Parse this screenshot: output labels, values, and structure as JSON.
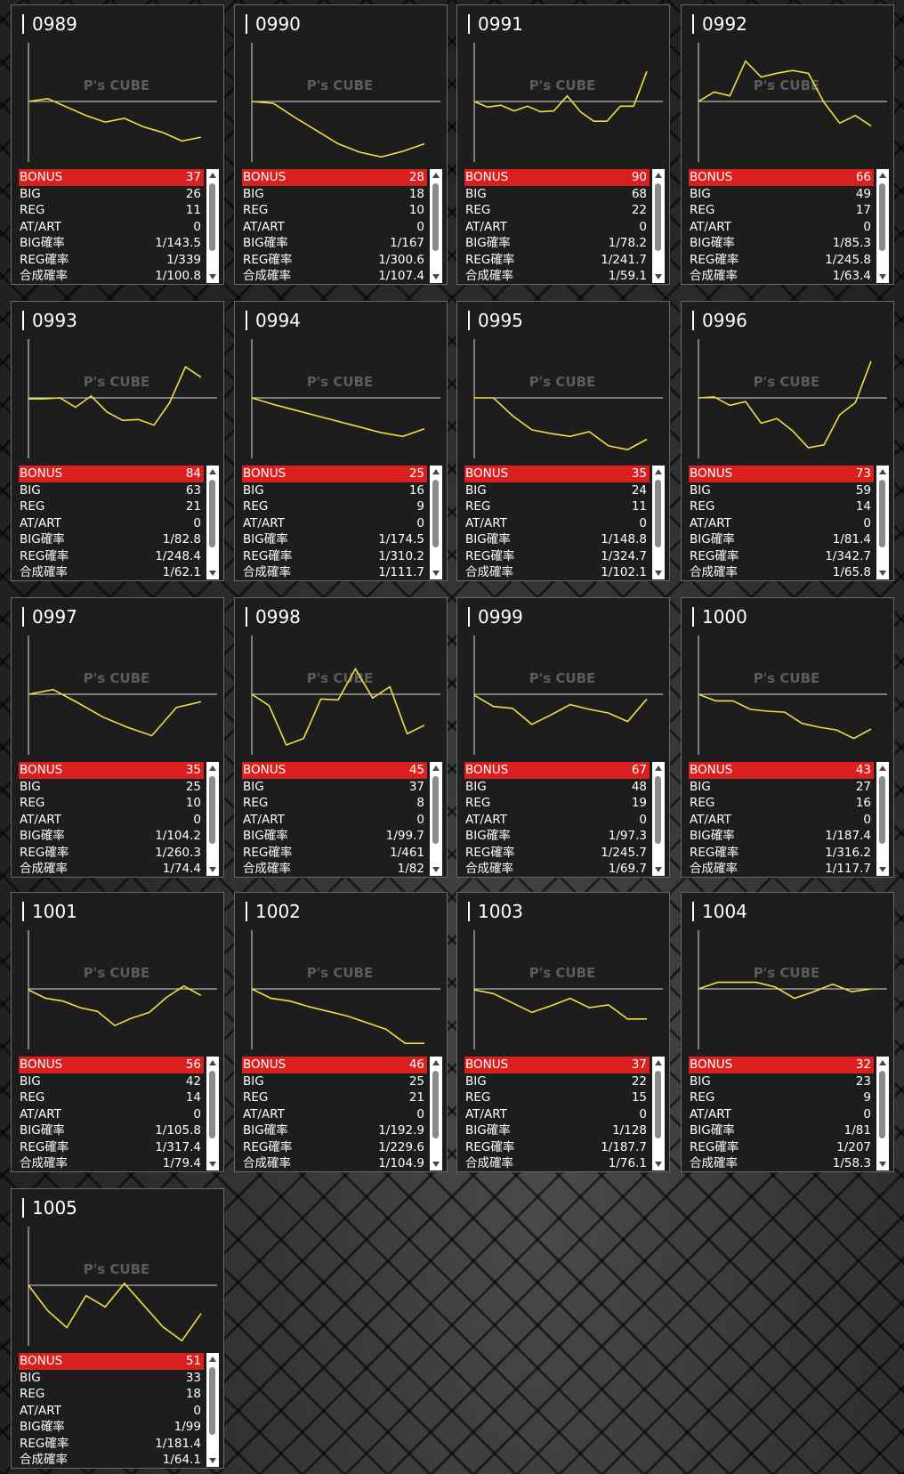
{
  "watermark": "P's CUBE",
  "stat_labels": [
    "BONUS",
    "BIG",
    "REG",
    "AT/ART",
    "BIG確率",
    "REG確率",
    "合成確率"
  ],
  "cards": [
    {
      "number": "0989",
      "line": [
        0,
        3,
        -6,
        -15,
        -22,
        -18,
        -27,
        -33,
        -42,
        -38
      ],
      "stats": [
        37,
        26,
        11,
        0,
        "1/143.5",
        "1/339",
        "1/100.8"
      ]
    },
    {
      "number": "0990",
      "line": [
        0,
        -2,
        -17,
        -31,
        -45,
        -54,
        -59,
        -53,
        -45
      ],
      "stats": [
        28,
        18,
        10,
        0,
        "1/167",
        "1/300.6",
        "1/107.4"
      ]
    },
    {
      "number": "0991",
      "line": [
        0,
        -6,
        -4,
        -10,
        -5,
        -11,
        -10,
        6,
        -11,
        -21,
        -21,
        -5,
        -5,
        32
      ],
      "stats": [
        90,
        68,
        22,
        0,
        "1/78.2",
        "1/241.7",
        "1/59.1"
      ]
    },
    {
      "number": "0992",
      "line": [
        0,
        10,
        6,
        43,
        26,
        30,
        33,
        30,
        -1,
        -23,
        -15,
        -26
      ],
      "stats": [
        66,
        49,
        17,
        0,
        "1/85.3",
        "1/245.8",
        "1/63.4"
      ]
    },
    {
      "number": "0993",
      "line": [
        -1,
        -1,
        0,
        -10,
        2,
        -15,
        -24,
        -23,
        -29,
        -5,
        33,
        22
      ],
      "stats": [
        84,
        63,
        21,
        0,
        "1/82.8",
        "1/248.4",
        "1/62.1"
      ]
    },
    {
      "number": "0994",
      "line": [
        0,
        -7,
        -13,
        -19,
        -25,
        -31,
        -37,
        -41,
        -33
      ],
      "stats": [
        25,
        16,
        9,
        0,
        "1/174.5",
        "1/310.2",
        "1/111.7"
      ]
    },
    {
      "number": "0995",
      "line": [
        0,
        0,
        -19,
        -34,
        -38,
        -41,
        -36,
        -51,
        -55,
        -44
      ],
      "stats": [
        35,
        24,
        11,
        0,
        "1/148.8",
        "1/324.7",
        "1/102.1"
      ]
    },
    {
      "number": "0996",
      "line": [
        0,
        1,
        -8,
        -4,
        -27,
        -22,
        -35,
        -53,
        -50,
        -18,
        -5,
        39
      ],
      "stats": [
        73,
        59,
        14,
        0,
        "1/81.4",
        "1/342.7",
        "1/65.8"
      ]
    },
    {
      "number": "0997",
      "line": [
        0,
        5,
        -9,
        -24,
        -35,
        -44,
        -14,
        -8
      ],
      "stats": [
        35,
        25,
        10,
        0,
        "1/104.2",
        "1/260.3",
        "1/74.4"
      ]
    },
    {
      "number": "0998",
      "line": [
        0,
        -12,
        -54,
        -47,
        -5,
        -6,
        27,
        -4,
        8,
        -42,
        -33
      ],
      "stats": [
        45,
        37,
        8,
        0,
        "1/99.7",
        "1/461",
        "1/82"
      ]
    },
    {
      "number": "0999",
      "line": [
        -1,
        -13,
        -15,
        -32,
        -22,
        -11,
        -16,
        -20,
        -29,
        -5
      ],
      "stats": [
        67,
        48,
        19,
        0,
        "1/97.3",
        "1/245.7",
        "1/69.7"
      ]
    },
    {
      "number": "1000",
      "line": [
        0,
        -7,
        -7,
        -16,
        -18,
        -19,
        -31,
        -35,
        -38,
        -47,
        -37
      ],
      "stats": [
        43,
        27,
        16,
        0,
        "1/187.4",
        "1/316.2",
        "1/117.7"
      ]
    },
    {
      "number": "1001",
      "line": [
        -1,
        -10,
        -13,
        -20,
        -24,
        -39,
        -31,
        -25,
        -9,
        3,
        -7
      ],
      "stats": [
        56,
        42,
        14,
        0,
        "1/105.8",
        "1/317.4",
        "1/79.4"
      ]
    },
    {
      "number": "1002",
      "line": [
        0,
        -10,
        -13,
        -19,
        -24,
        -29,
        -36,
        -43,
        -58,
        -58
      ],
      "stats": [
        46,
        25,
        21,
        0,
        "1/192.9",
        "1/229.6",
        "1/104.9"
      ]
    },
    {
      "number": "1003",
      "line": [
        -1,
        -5,
        -15,
        -25,
        -18,
        -10,
        -20,
        -17,
        -32,
        -32
      ],
      "stats": [
        37,
        22,
        15,
        0,
        "1/128",
        "1/187.7",
        "1/76.1"
      ]
    },
    {
      "number": "1004",
      "line": [
        0,
        7,
        7,
        7,
        2,
        -10,
        -3,
        5,
        -3,
        0
      ],
      "stats": [
        32,
        23,
        9,
        0,
        "1/81",
        "1/207",
        "1/58.3"
      ]
    },
    {
      "number": "1005",
      "line": [
        0,
        -27,
        -45,
        -11,
        -23,
        2,
        -21,
        -44,
        -59,
        -30
      ],
      "stats": [
        51,
        33,
        18,
        0,
        "1/99",
        "1/181.4",
        "1/64.1"
      ]
    }
  ]
}
